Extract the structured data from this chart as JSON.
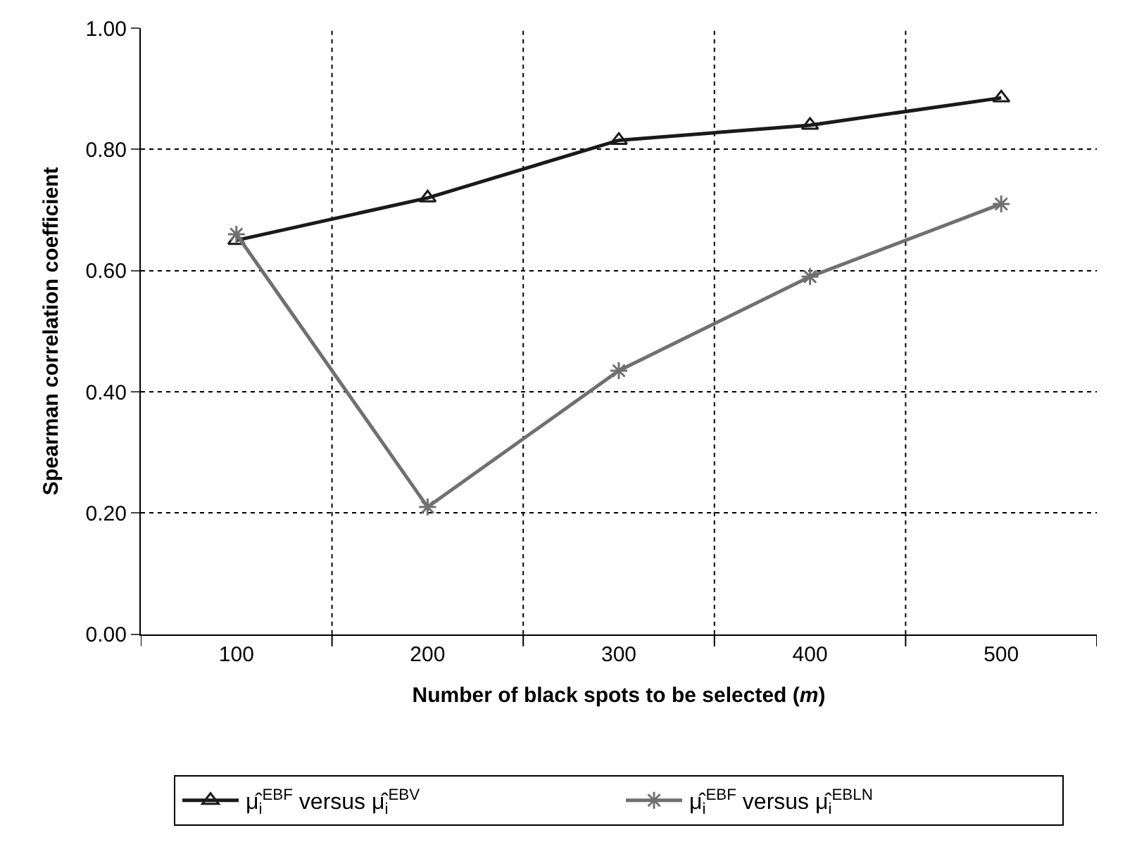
{
  "chart_data": {
    "type": "line",
    "xlabel": "Number of black spots to be selected (m)",
    "ylabel": "Spearman correlation coefficient",
    "categories": [
      "100",
      "200",
      "300",
      "400",
      "500"
    ],
    "series": [
      {
        "name": "μ̂$_{i}$$^{EBF}$ versus μ̂$_{i}$$^{EBV}$",
        "color": "#1a1a1a",
        "marker": "triangle",
        "values": [
          0.65,
          0.72,
          0.815,
          0.84,
          0.885
        ]
      },
      {
        "name": "μ̂$_{i}$$^{EBF}$ versus μ̂$_{i}$$^{EBLN}$",
        "color": "#707070",
        "marker": "cross",
        "values": [
          0.66,
          0.21,
          0.435,
          0.59,
          0.71
        ]
      }
    ],
    "ylim": [
      0,
      1
    ],
    "yticks": [
      {
        "value": 0,
        "label": "0.00"
      },
      {
        "value": 0.2,
        "label": "0.20"
      },
      {
        "value": 0.4,
        "label": "0.40"
      },
      {
        "value": 0.6,
        "label": "0.60"
      },
      {
        "value": 0.8,
        "label": "0.80"
      },
      {
        "value": 1,
        "label": "1.00"
      }
    ],
    "grid": true,
    "legend": "bottom",
    "line_style": "solid"
  }
}
